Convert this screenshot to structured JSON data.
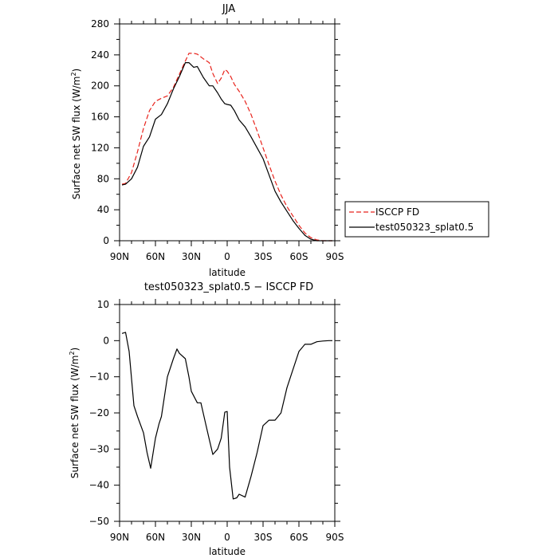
{
  "chart_data": [
    {
      "type": "line",
      "title": "JJA",
      "xlabel": "latitude",
      "ylabel": "Surface net SW flux (W/m²)",
      "x_ticks": [
        "90N",
        "60N",
        "30N",
        "0",
        "30S",
        "60S",
        "90S"
      ],
      "y_ticks": [
        "0",
        "40",
        "80",
        "120",
        "160",
        "200",
        "240",
        "280"
      ],
      "xlim": [
        -90,
        90
      ],
      "ylim": [
        0,
        280
      ],
      "x_direction": "90N on left to 90S on right",
      "legend_position": "right, outside plot",
      "series": [
        {
          "name": "ISCCP FD",
          "color": "#e8231c",
          "dash": "dashed",
          "x": [
            -88,
            -85,
            -80,
            -75,
            -70,
            -65,
            -60,
            -55,
            -50,
            -45,
            -40,
            -35,
            -32,
            -28,
            -25,
            -20,
            -15,
            -12,
            -8,
            -5,
            -2,
            0,
            3,
            6,
            10,
            15,
            20,
            25,
            30,
            35,
            40,
            45,
            50,
            55,
            60,
            65,
            70,
            75,
            80,
            85,
            88
          ],
          "y": [
            73,
            74,
            88,
            115,
            145,
            168,
            180,
            184,
            187,
            198,
            215,
            232,
            242,
            242,
            241,
            235,
            230,
            216,
            203,
            210,
            221,
            219,
            212,
            202,
            193,
            180,
            163,
            142,
            120,
            98,
            77,
            59,
            44,
            32,
            20,
            10,
            4,
            1,
            0,
            0,
            0
          ]
        },
        {
          "name": "test050323_splat0.5",
          "color": "#000000",
          "dash": "solid",
          "x": [
            -88,
            -85,
            -80,
            -75,
            -70,
            -65,
            -60,
            -55,
            -50,
            -45,
            -40,
            -35,
            -32,
            -28,
            -25,
            -20,
            -15,
            -12,
            -8,
            -5,
            -2,
            0,
            3,
            6,
            10,
            15,
            20,
            25,
            30,
            35,
            40,
            45,
            50,
            55,
            60,
            65,
            70,
            75,
            80,
            85,
            88
          ],
          "y": [
            72,
            73,
            80,
            95,
            122,
            134,
            157,
            163,
            177,
            196,
            212,
            230,
            230,
            224,
            225,
            211,
            200,
            200,
            191,
            183,
            177,
            176,
            175,
            168,
            156,
            147,
            134,
            120,
            106,
            85,
            64,
            50,
            38,
            26,
            16,
            7,
            2,
            0,
            0,
            0,
            0
          ]
        }
      ]
    },
    {
      "type": "line",
      "title": "test050323_splat0.5 − ISCCP FD",
      "xlabel": "latitude",
      "ylabel": "Surface net SW flux (W/m²)",
      "x_ticks": [
        "90N",
        "60N",
        "30N",
        "0",
        "30S",
        "60S",
        "90S"
      ],
      "y_ticks": [
        "10",
        "0",
        "−10",
        "−20",
        "−30",
        "−40",
        "−50"
      ],
      "xlim": [
        -90,
        90
      ],
      "ylim": [
        -50,
        10
      ],
      "x_direction": "90N on left to 90S on right",
      "series": [
        {
          "color": "#000000",
          "x": [
            -88,
            -85,
            -82,
            -78,
            -75,
            -70,
            -67,
            -64,
            -60,
            -57,
            -55,
            -50,
            -45,
            -42,
            -40,
            -35,
            -32,
            -30,
            -25,
            -22,
            -18,
            -15,
            -12,
            -8,
            -5,
            -2,
            0,
            2,
            5,
            8,
            10,
            15,
            20,
            25,
            30,
            35,
            40,
            45,
            50,
            55,
            60,
            65,
            70,
            75,
            80,
            85,
            88
          ],
          "y": [
            2.0,
            2.3,
            -3.0,
            -18.0,
            -21.0,
            -25.5,
            -31.0,
            -35.3,
            -27.0,
            -23.0,
            -21.0,
            -10.0,
            -5.0,
            -2.3,
            -3.5,
            -5.0,
            -10.0,
            -14.0,
            -17.2,
            -17.2,
            -23.0,
            -27.3,
            -31.5,
            -30.0,
            -27.0,
            -19.8,
            -19.6,
            -35.0,
            -43.8,
            -43.5,
            -42.5,
            -43.3,
            -37.5,
            -31.0,
            -23.5,
            -22.0,
            -22.0,
            -20.0,
            -13.0,
            -8.0,
            -3.0,
            -1.0,
            -1.0,
            -0.3,
            -0.1,
            0.0,
            0.0
          ]
        }
      ]
    }
  ]
}
